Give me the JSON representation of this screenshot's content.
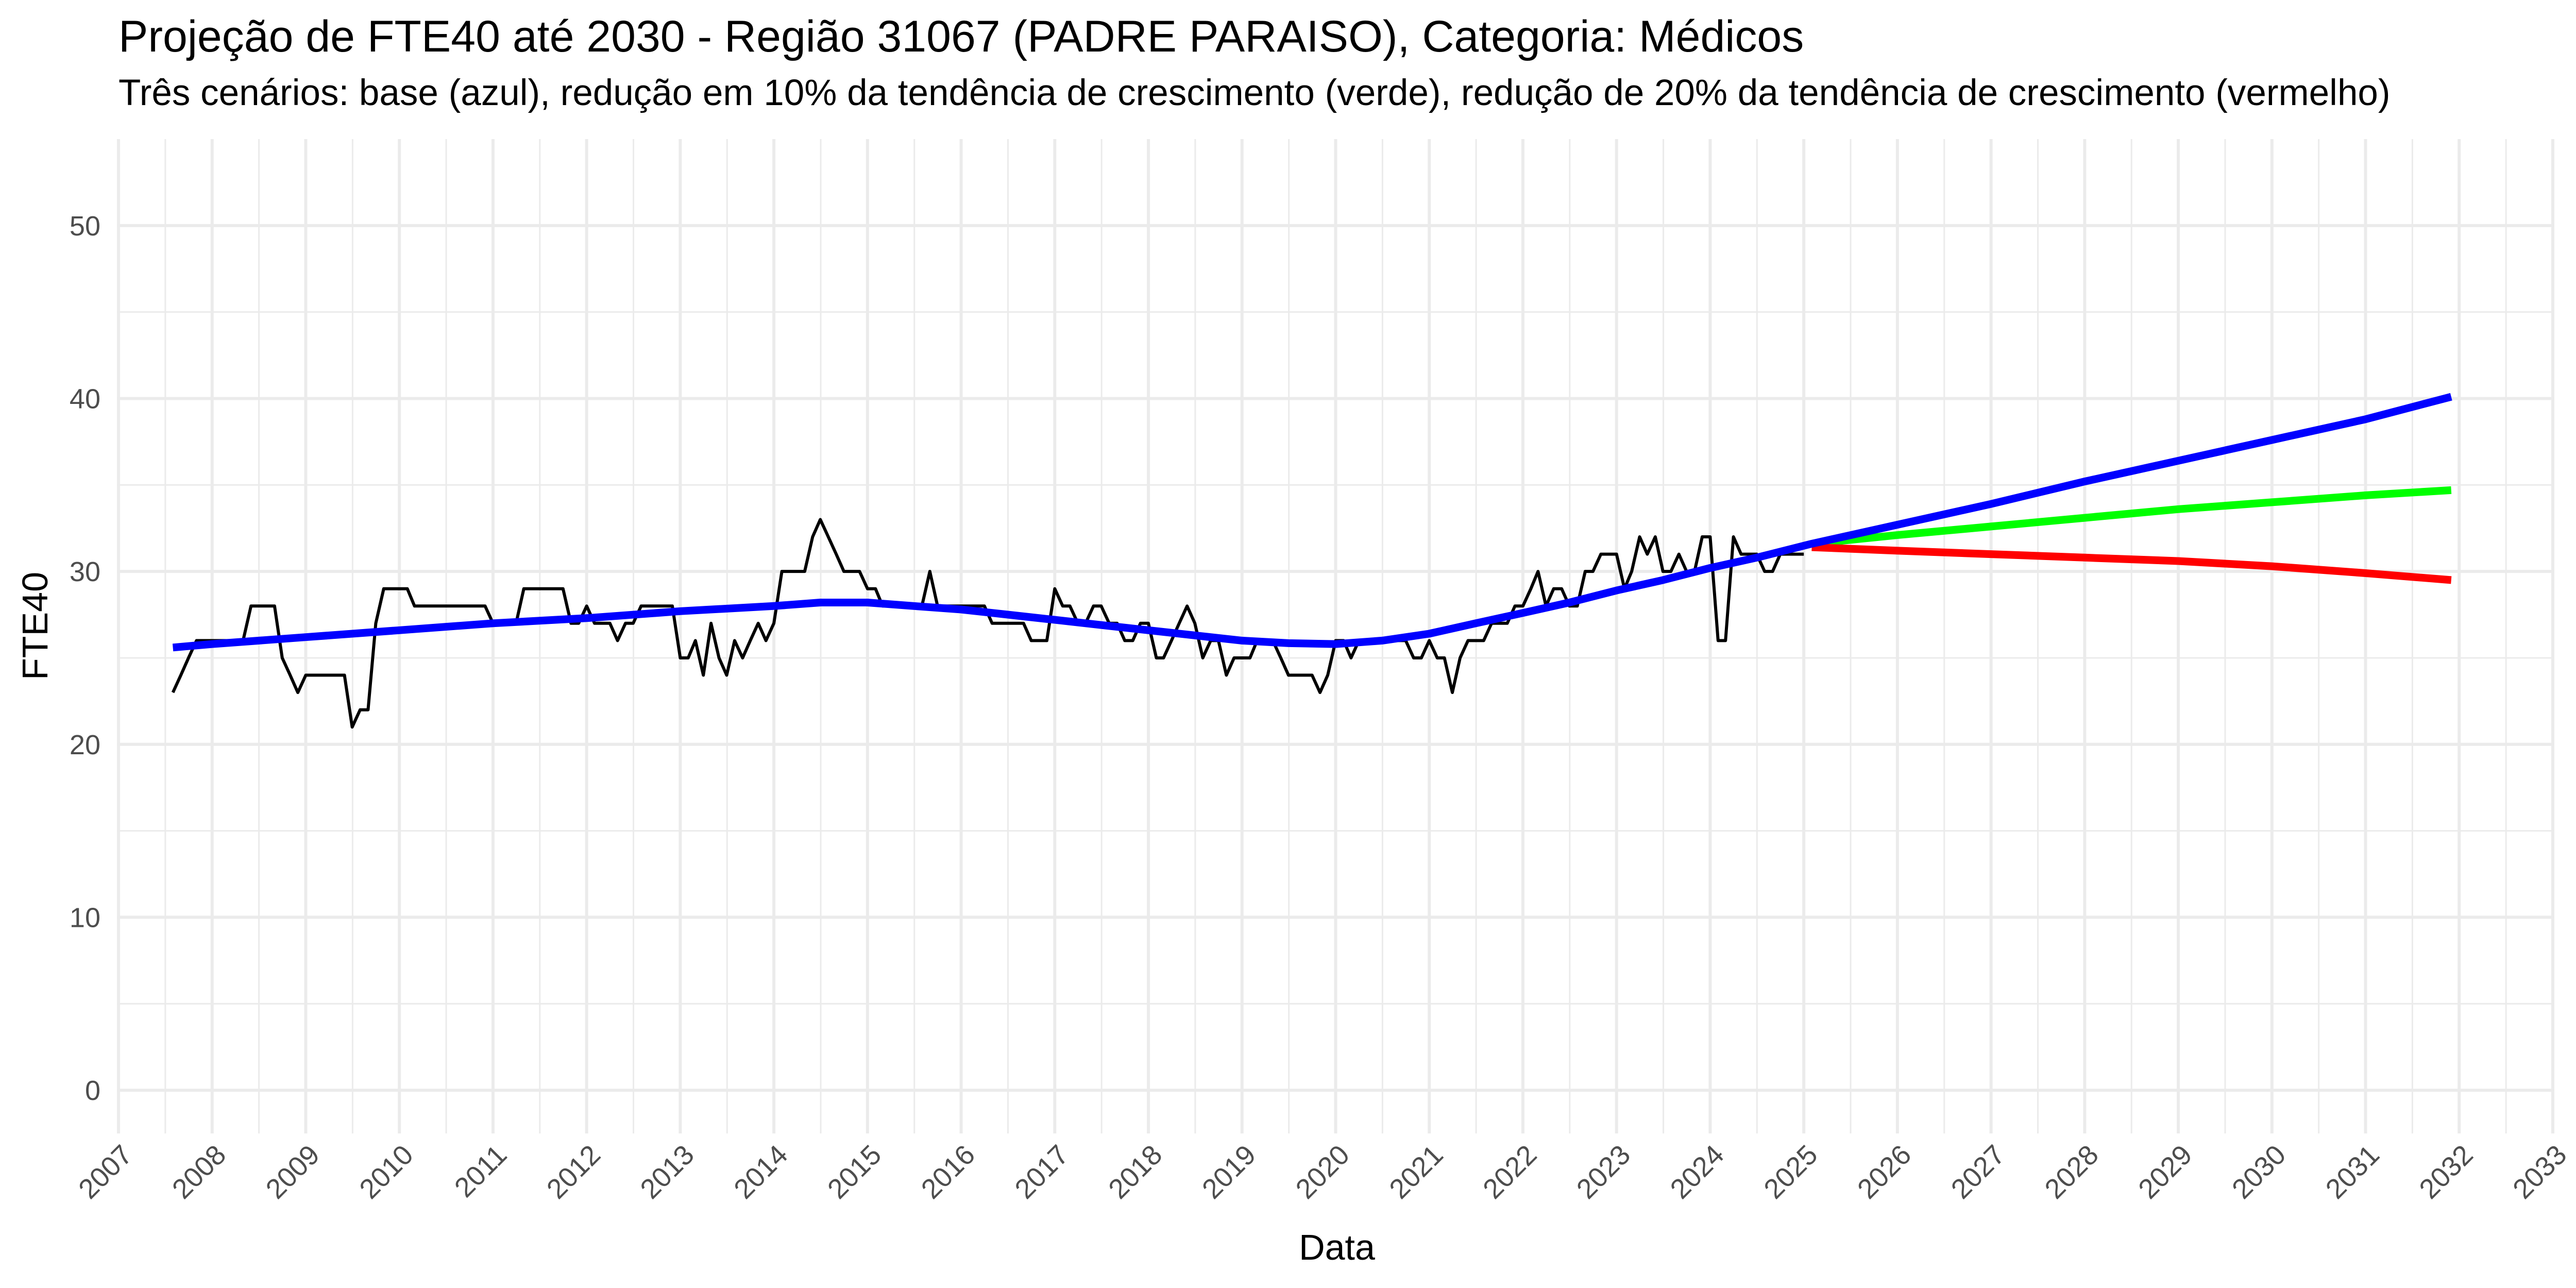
{
  "chart_data": {
    "type": "line",
    "title": "Projeção de FTE40 até 2030 - Região 31067 (PADRE PARAISO), Categoria: Médicos",
    "subtitle": "Três cenários: base (azul), redução em 10% da tendência de crescimento (verde), redução de 20% da tendência de crescimento (vermelho)",
    "xlabel": "Data",
    "ylabel": "FTE40",
    "xlim": [
      "2007-01-01",
      "2033-01-01"
    ],
    "ylim": [
      -2.5,
      55
    ],
    "y_ticks": [
      0,
      10,
      20,
      30,
      40,
      50
    ],
    "x_tick_labels": [
      "2007",
      "2008",
      "2009",
      "2010",
      "2011",
      "2012",
      "2013",
      "2014",
      "2015",
      "2016",
      "2017",
      "2018",
      "2019",
      "2020",
      "2021",
      "2022",
      "2023",
      "2024",
      "2025",
      "2026",
      "2027",
      "2028",
      "2029",
      "2030",
      "2031",
      "2032",
      "2033"
    ],
    "grid": true,
    "legend": "none",
    "series": [
      {
        "color": "#000000",
        "points": [
          [
            "2007-08-01",
            23
          ],
          [
            "2007-09-01",
            24
          ],
          [
            "2007-10-01",
            25
          ],
          [
            "2007-11-01",
            26
          ],
          [
            "2007-12-01",
            26
          ],
          [
            "2008-01-01",
            26
          ],
          [
            "2008-02-01",
            26
          ],
          [
            "2008-03-01",
            26
          ],
          [
            "2008-04-01",
            26
          ],
          [
            "2008-05-01",
            26
          ],
          [
            "2008-06-01",
            28
          ],
          [
            "2008-07-01",
            28
          ],
          [
            "2008-08-01",
            28
          ],
          [
            "2008-09-01",
            28
          ],
          [
            "2008-10-01",
            25
          ],
          [
            "2008-11-01",
            24
          ],
          [
            "2008-12-01",
            23
          ],
          [
            "2009-01-01",
            24
          ],
          [
            "2009-02-01",
            24
          ],
          [
            "2009-03-01",
            24
          ],
          [
            "2009-04-01",
            24
          ],
          [
            "2009-05-01",
            24
          ],
          [
            "2009-06-01",
            24
          ],
          [
            "2009-07-01",
            21
          ],
          [
            "2009-08-01",
            22
          ],
          [
            "2009-09-01",
            22
          ],
          [
            "2009-10-01",
            27
          ],
          [
            "2009-11-01",
            29
          ],
          [
            "2009-12-01",
            29
          ],
          [
            "2010-01-01",
            29
          ],
          [
            "2010-02-01",
            29
          ],
          [
            "2010-03-01",
            28
          ],
          [
            "2010-04-01",
            28
          ],
          [
            "2010-05-01",
            28
          ],
          [
            "2010-06-01",
            28
          ],
          [
            "2010-07-01",
            28
          ],
          [
            "2010-08-01",
            28
          ],
          [
            "2010-09-01",
            28
          ],
          [
            "2010-10-01",
            28
          ],
          [
            "2010-11-01",
            28
          ],
          [
            "2010-12-01",
            28
          ],
          [
            "2011-01-01",
            27
          ],
          [
            "2011-02-01",
            27
          ],
          [
            "2011-03-01",
            27
          ],
          [
            "2011-04-01",
            27
          ],
          [
            "2011-05-01",
            29
          ],
          [
            "2011-06-01",
            29
          ],
          [
            "2011-07-01",
            29
          ],
          [
            "2011-08-01",
            29
          ],
          [
            "2011-09-01",
            29
          ],
          [
            "2011-10-01",
            29
          ],
          [
            "2011-11-01",
            27
          ],
          [
            "2011-12-01",
            27
          ],
          [
            "2012-01-01",
            28
          ],
          [
            "2012-02-01",
            27
          ],
          [
            "2012-03-01",
            27
          ],
          [
            "2012-04-01",
            27
          ],
          [
            "2012-05-01",
            26
          ],
          [
            "2012-06-01",
            27
          ],
          [
            "2012-07-01",
            27
          ],
          [
            "2012-08-01",
            28
          ],
          [
            "2012-09-01",
            28
          ],
          [
            "2012-10-01",
            28
          ],
          [
            "2012-11-01",
            28
          ],
          [
            "2012-12-01",
            28
          ],
          [
            "2013-01-01",
            25
          ],
          [
            "2013-02-01",
            25
          ],
          [
            "2013-03-01",
            26
          ],
          [
            "2013-04-01",
            24
          ],
          [
            "2013-05-01",
            27
          ],
          [
            "2013-06-01",
            25
          ],
          [
            "2013-07-01",
            24
          ],
          [
            "2013-08-01",
            26
          ],
          [
            "2013-09-01",
            25
          ],
          [
            "2013-10-01",
            26
          ],
          [
            "2013-11-01",
            27
          ],
          [
            "2013-12-01",
            26
          ],
          [
            "2014-01-01",
            27
          ],
          [
            "2014-02-01",
            30
          ],
          [
            "2014-03-01",
            30
          ],
          [
            "2014-04-01",
            30
          ],
          [
            "2014-05-01",
            30
          ],
          [
            "2014-06-01",
            32
          ],
          [
            "2014-07-01",
            33
          ],
          [
            "2014-08-01",
            32
          ],
          [
            "2014-09-01",
            31
          ],
          [
            "2014-10-01",
            30
          ],
          [
            "2014-11-01",
            30
          ],
          [
            "2014-12-01",
            30
          ],
          [
            "2015-01-01",
            29
          ],
          [
            "2015-02-01",
            29
          ],
          [
            "2015-03-01",
            28
          ],
          [
            "2015-04-01",
            28
          ],
          [
            "2015-05-01",
            28
          ],
          [
            "2015-06-01",
            28
          ],
          [
            "2015-07-01",
            28
          ],
          [
            "2015-08-01",
            28
          ],
          [
            "2015-09-01",
            30
          ],
          [
            "2015-10-01",
            28
          ],
          [
            "2015-11-01",
            28
          ],
          [
            "2015-12-01",
            28
          ],
          [
            "2016-01-01",
            28
          ],
          [
            "2016-02-01",
            28
          ],
          [
            "2016-03-01",
            28
          ],
          [
            "2016-04-01",
            28
          ],
          [
            "2016-05-01",
            27
          ],
          [
            "2016-06-01",
            27
          ],
          [
            "2016-07-01",
            27
          ],
          [
            "2016-08-01",
            27
          ],
          [
            "2016-09-01",
            27
          ],
          [
            "2016-10-01",
            26
          ],
          [
            "2016-11-01",
            26
          ],
          [
            "2016-12-01",
            26
          ],
          [
            "2017-01-01",
            29
          ],
          [
            "2017-02-01",
            28
          ],
          [
            "2017-03-01",
            28
          ],
          [
            "2017-04-01",
            27
          ],
          [
            "2017-05-01",
            27
          ],
          [
            "2017-06-01",
            28
          ],
          [
            "2017-07-01",
            28
          ],
          [
            "2017-08-01",
            27
          ],
          [
            "2017-09-01",
            27
          ],
          [
            "2017-10-01",
            26
          ],
          [
            "2017-11-01",
            26
          ],
          [
            "2017-12-01",
            27
          ],
          [
            "2018-01-01",
            27
          ],
          [
            "2018-02-01",
            25
          ],
          [
            "2018-03-01",
            25
          ],
          [
            "2018-04-01",
            26
          ],
          [
            "2018-05-01",
            27
          ],
          [
            "2018-06-01",
            28
          ],
          [
            "2018-07-01",
            27
          ],
          [
            "2018-08-01",
            25
          ],
          [
            "2018-09-01",
            26
          ],
          [
            "2018-10-01",
            26
          ],
          [
            "2018-11-01",
            24
          ],
          [
            "2018-12-01",
            25
          ],
          [
            "2019-01-01",
            25
          ],
          [
            "2019-02-01",
            25
          ],
          [
            "2019-03-01",
            26
          ],
          [
            "2019-04-01",
            26
          ],
          [
            "2019-05-01",
            26
          ],
          [
            "2019-06-01",
            25
          ],
          [
            "2019-07-01",
            24
          ],
          [
            "2019-08-01",
            24
          ],
          [
            "2019-09-01",
            24
          ],
          [
            "2019-10-01",
            24
          ],
          [
            "2019-11-01",
            23
          ],
          [
            "2019-12-01",
            24
          ],
          [
            "2020-01-01",
            26
          ],
          [
            "2020-02-01",
            26
          ],
          [
            "2020-03-01",
            25
          ],
          [
            "2020-04-01",
            26
          ],
          [
            "2020-05-01",
            26
          ],
          [
            "2020-06-01",
            26
          ],
          [
            "2020-07-01",
            26
          ],
          [
            "2020-08-01",
            26
          ],
          [
            "2020-09-01",
            26
          ],
          [
            "2020-10-01",
            26
          ],
          [
            "2020-11-01",
            25
          ],
          [
            "2020-12-01",
            25
          ],
          [
            "2021-01-01",
            26
          ],
          [
            "2021-02-01",
            25
          ],
          [
            "2021-03-01",
            25
          ],
          [
            "2021-04-01",
            23
          ],
          [
            "2021-05-01",
            25
          ],
          [
            "2021-06-01",
            26
          ],
          [
            "2021-07-01",
            26
          ],
          [
            "2021-08-01",
            26
          ],
          [
            "2021-09-01",
            27
          ],
          [
            "2021-10-01",
            27
          ],
          [
            "2021-11-01",
            27
          ],
          [
            "2021-12-01",
            28
          ],
          [
            "2022-01-01",
            28
          ],
          [
            "2022-02-01",
            29
          ],
          [
            "2022-03-01",
            30
          ],
          [
            "2022-04-01",
            28
          ],
          [
            "2022-05-01",
            29
          ],
          [
            "2022-06-01",
            29
          ],
          [
            "2022-07-01",
            28
          ],
          [
            "2022-08-01",
            28
          ],
          [
            "2022-09-01",
            30
          ],
          [
            "2022-10-01",
            30
          ],
          [
            "2022-11-01",
            31
          ],
          [
            "2022-12-01",
            31
          ],
          [
            "2023-01-01",
            31
          ],
          [
            "2023-02-01",
            29
          ],
          [
            "2023-03-01",
            30
          ],
          [
            "2023-04-01",
            32
          ],
          [
            "2023-05-01",
            31
          ],
          [
            "2023-06-01",
            32
          ],
          [
            "2023-07-01",
            30
          ],
          [
            "2023-08-01",
            30
          ],
          [
            "2023-09-01",
            31
          ],
          [
            "2023-10-01",
            30
          ],
          [
            "2023-11-01",
            30
          ],
          [
            "2023-12-01",
            32
          ],
          [
            "2024-01-01",
            32
          ],
          [
            "2024-02-01",
            26
          ],
          [
            "2024-03-01",
            26
          ],
          [
            "2024-04-01",
            32
          ],
          [
            "2024-05-01",
            31
          ],
          [
            "2024-06-01",
            31
          ],
          [
            "2024-07-01",
            31
          ],
          [
            "2024-08-01",
            30
          ],
          [
            "2024-09-01",
            30
          ],
          [
            "2024-10-01",
            31
          ],
          [
            "2024-11-01",
            31
          ],
          [
            "2024-12-01",
            31
          ],
          [
            "2025-01-01",
            31
          ]
        ]
      },
      {
        "color": "#0000ff",
        "points": [
          [
            "2007-08-01",
            25.6
          ],
          [
            "2008-01-01",
            25.8
          ],
          [
            "2009-01-01",
            26.2
          ],
          [
            "2010-01-01",
            26.6
          ],
          [
            "2011-01-01",
            27.0
          ],
          [
            "2012-01-01",
            27.3
          ],
          [
            "2013-01-01",
            27.7
          ],
          [
            "2014-01-01",
            28.0
          ],
          [
            "2014-07-01",
            28.2
          ],
          [
            "2015-01-01",
            28.2
          ],
          [
            "2015-07-01",
            28.0
          ],
          [
            "2016-01-01",
            27.8
          ],
          [
            "2016-07-01",
            27.5
          ],
          [
            "2017-01-01",
            27.2
          ],
          [
            "2017-07-01",
            26.9
          ],
          [
            "2018-01-01",
            26.6
          ],
          [
            "2018-07-01",
            26.3
          ],
          [
            "2019-01-01",
            26.0
          ],
          [
            "2019-07-01",
            25.85
          ],
          [
            "2020-01-01",
            25.8
          ],
          [
            "2020-07-01",
            26.0
          ],
          [
            "2021-01-01",
            26.4
          ],
          [
            "2021-07-01",
            27.0
          ],
          [
            "2022-01-01",
            27.6
          ],
          [
            "2022-07-01",
            28.2
          ],
          [
            "2023-01-01",
            28.9
          ],
          [
            "2023-07-01",
            29.5
          ],
          [
            "2024-01-01",
            30.2
          ],
          [
            "2024-07-01",
            30.8
          ],
          [
            "2025-02-01",
            31.6
          ],
          [
            "2026-01-01",
            32.7
          ],
          [
            "2027-01-01",
            33.9
          ],
          [
            "2028-01-01",
            35.2
          ],
          [
            "2029-01-01",
            36.4
          ],
          [
            "2030-01-01",
            37.6
          ],
          [
            "2031-01-01",
            38.8
          ],
          [
            "2031-12-01",
            40.1
          ]
        ]
      },
      {
        "color": "#00ff00",
        "points": [
          [
            "2025-02-01",
            31.6
          ],
          [
            "2026-01-01",
            32.1
          ],
          [
            "2027-01-01",
            32.6
          ],
          [
            "2028-01-01",
            33.1
          ],
          [
            "2029-01-01",
            33.6
          ],
          [
            "2030-01-01",
            34.0
          ],
          [
            "2031-01-01",
            34.4
          ],
          [
            "2031-12-01",
            34.7
          ]
        ]
      },
      {
        "color": "#ff0000",
        "points": [
          [
            "2025-02-01",
            31.4
          ],
          [
            "2026-01-01",
            31.2
          ],
          [
            "2027-01-01",
            31.0
          ],
          [
            "2028-01-01",
            30.8
          ],
          [
            "2029-01-01",
            30.6
          ],
          [
            "2030-01-01",
            30.3
          ],
          [
            "2031-01-01",
            29.9
          ],
          [
            "2031-12-01",
            29.5
          ]
        ]
      }
    ]
  }
}
